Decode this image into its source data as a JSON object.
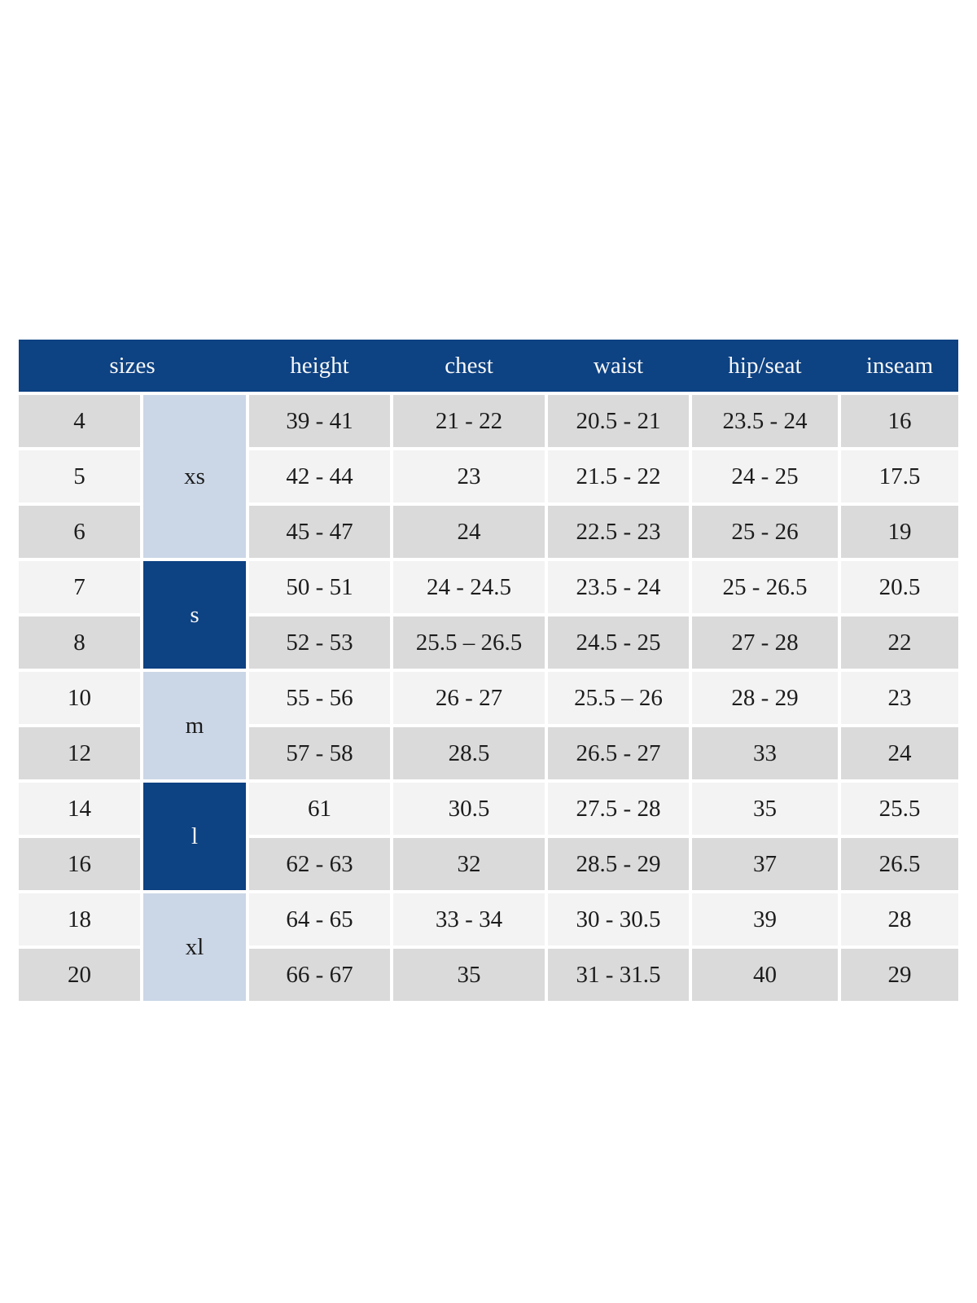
{
  "colors": {
    "header_bg": "#0d4283",
    "header_text": "#f7f7f7",
    "group_light": "#cbd7e7",
    "row_gray": "#dadada",
    "row_light": "#f3f3f3",
    "text": "#1c1c1c",
    "page_bg": "#ffffff"
  },
  "table": {
    "header": {
      "sizes": "sizes",
      "height": "height",
      "chest": "chest",
      "waist": "waist",
      "hip_seat": "hip/seat",
      "inseam": "inseam"
    },
    "groups": [
      {
        "label": "xs",
        "row_span": 3,
        "style": "light"
      },
      {
        "label": "s",
        "row_span": 2,
        "style": "dark"
      },
      {
        "label": "m",
        "row_span": 2,
        "style": "light"
      },
      {
        "label": "l",
        "row_span": 2,
        "style": "dark"
      },
      {
        "label": "xl",
        "row_span": 2,
        "style": "light"
      }
    ],
    "rows": [
      {
        "size": "4",
        "height": "39 - 41",
        "chest": "21 - 22",
        "waist": "20.5 - 21",
        "hip_seat": "23.5 - 24",
        "inseam": "16",
        "shade": "gray"
      },
      {
        "size": "5",
        "height": "42 - 44",
        "chest": "23",
        "waist": "21.5 - 22",
        "hip_seat": "24 - 25",
        "inseam": "17.5",
        "shade": "light"
      },
      {
        "size": "6",
        "height": "45 - 47",
        "chest": "24",
        "waist": "22.5 - 23",
        "hip_seat": "25 - 26",
        "inseam": "19",
        "shade": "gray"
      },
      {
        "size": "7",
        "height": "50 - 51",
        "chest": "24 - 24.5",
        "waist": "23.5 - 24",
        "hip_seat": "25 - 26.5",
        "inseam": "20.5",
        "shade": "light"
      },
      {
        "size": "8",
        "height": "52 - 53",
        "chest": "25.5 – 26.5",
        "waist": "24.5 - 25",
        "hip_seat": "27 - 28",
        "inseam": "22",
        "shade": "gray"
      },
      {
        "size": "10",
        "height": "55 - 56",
        "chest": "26 - 27",
        "waist": "25.5 – 26",
        "hip_seat": "28 - 29",
        "inseam": "23",
        "shade": "light"
      },
      {
        "size": "12",
        "height": "57 - 58",
        "chest": "28.5",
        "waist": "26.5 - 27",
        "hip_seat": "33",
        "inseam": "24",
        "shade": "gray"
      },
      {
        "size": "14",
        "height": "61",
        "chest": "30.5",
        "waist": "27.5 - 28",
        "hip_seat": "35",
        "inseam": "25.5",
        "shade": "light"
      },
      {
        "size": "16",
        "height": "62 - 63",
        "chest": "32",
        "waist": "28.5 - 29",
        "hip_seat": "37",
        "inseam": "26.5",
        "shade": "gray"
      },
      {
        "size": "18",
        "height": "64 - 65",
        "chest": "33 - 34",
        "waist": "30 - 30.5",
        "hip_seat": "39",
        "inseam": "28",
        "shade": "light"
      },
      {
        "size": "20",
        "height": "66 - 67",
        "chest": "35",
        "waist": "31 - 31.5",
        "hip_seat": "40",
        "inseam": "29",
        "shade": "gray"
      }
    ]
  }
}
